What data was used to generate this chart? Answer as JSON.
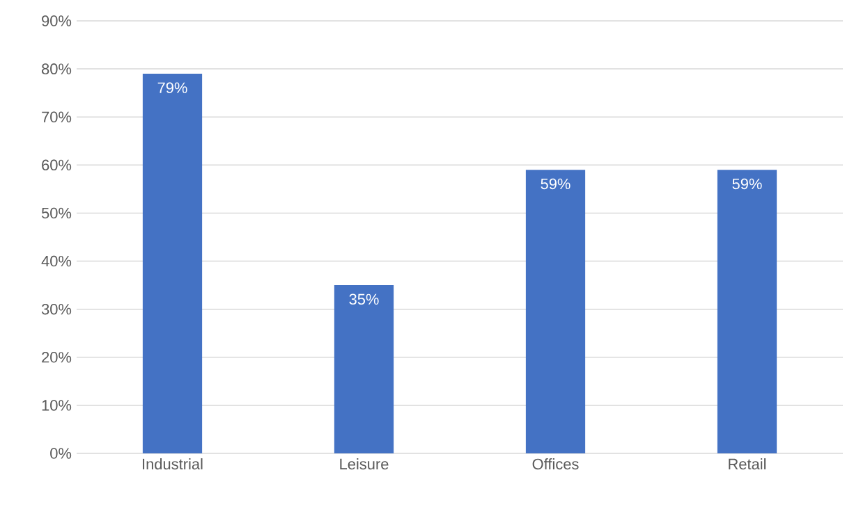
{
  "chart_data": {
    "type": "bar",
    "categories": [
      "Industrial",
      "Leisure",
      "Offices",
      "Retail"
    ],
    "values": [
      79,
      35,
      59,
      59
    ],
    "value_labels": [
      "79%",
      "35%",
      "59%",
      "59%"
    ],
    "color": "#4472c4",
    "ylim": [
      0,
      90
    ],
    "yticks": [
      {
        "value": 0,
        "label": "0%"
      },
      {
        "value": 10,
        "label": "10%"
      },
      {
        "value": 20,
        "label": "20%"
      },
      {
        "value": 30,
        "label": "30%"
      },
      {
        "value": 40,
        "label": "40%"
      },
      {
        "value": 50,
        "label": "50%"
      },
      {
        "value": 60,
        "label": "60%"
      },
      {
        "value": 70,
        "label": "70%"
      },
      {
        "value": 80,
        "label": "80%"
      },
      {
        "value": 90,
        "label": "90%"
      }
    ],
    "grid": "y"
  }
}
